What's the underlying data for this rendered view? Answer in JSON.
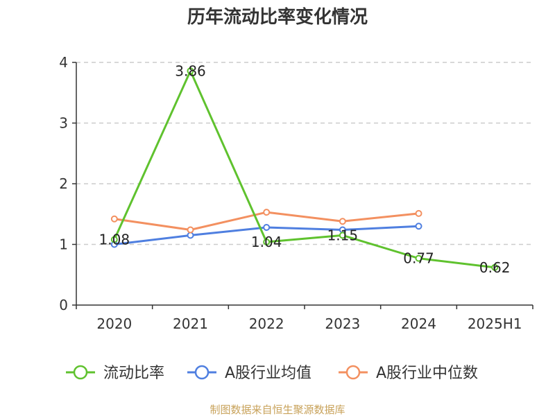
{
  "source_note": "制图数据来自恒生聚源数据库",
  "colors": {
    "current_ratio": "#5fc22e",
    "industry_mean": "#4f7fe0",
    "industry_median": "#f39060",
    "grid": "#cccccc",
    "axis": "#333333",
    "source": "#c8a25a"
  },
  "chart_data": {
    "type": "line",
    "title": "历年流动比率变化情况",
    "xlabel": "",
    "ylabel": "",
    "categories": [
      "2020",
      "2021",
      "2022",
      "2023",
      "2024",
      "2025H1"
    ],
    "ylim": [
      0,
      4
    ],
    "yticks": [
      0,
      1,
      2,
      3,
      4
    ],
    "grid": true,
    "legend_position": "bottom",
    "series": [
      {
        "name": "流动比率",
        "color": "#5fc22e",
        "values": [
          1.08,
          3.86,
          1.04,
          1.15,
          0.77,
          0.62
        ],
        "labels": [
          "1.08",
          "3.86",
          "1.04",
          "1.15",
          "0.77",
          "0.62"
        ]
      },
      {
        "name": "A股行业均值",
        "color": "#4f7fe0",
        "values": [
          1.0,
          1.15,
          1.28,
          1.24,
          1.3,
          null
        ]
      },
      {
        "name": "A股行业中位数",
        "color": "#f39060",
        "values": [
          1.42,
          1.24,
          1.53,
          1.38,
          1.51,
          null
        ]
      }
    ]
  }
}
